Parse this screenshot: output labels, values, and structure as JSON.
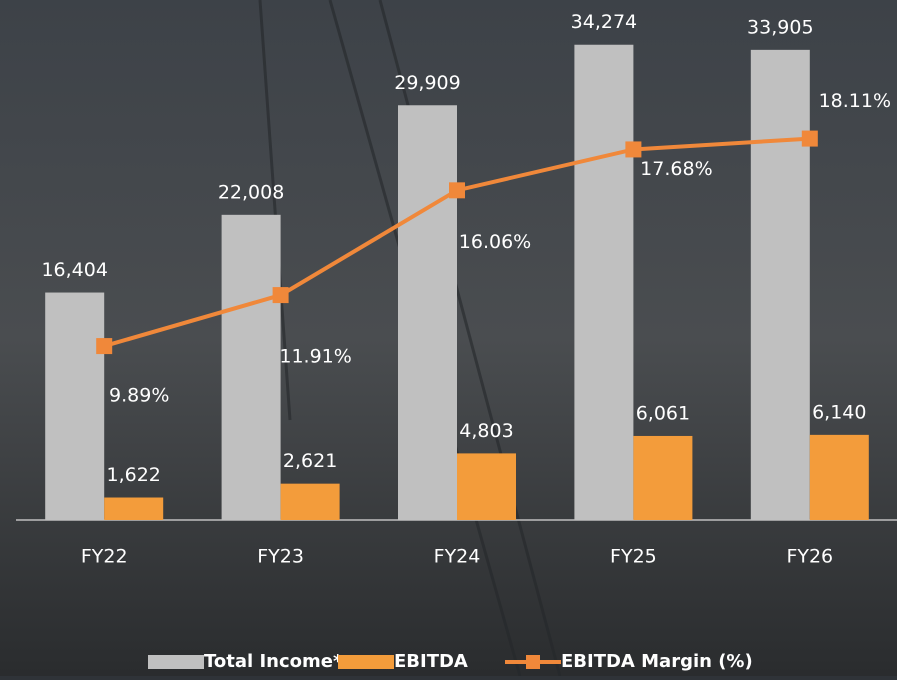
{
  "chart_data": {
    "type": "bar-line",
    "categories": [
      "FY22",
      "FY23",
      "FY24",
      "FY25",
      "FY26"
    ],
    "series": [
      {
        "name": "Total Income*",
        "type": "bar",
        "color": "#c0c0c0",
        "values": [
          16404,
          22008,
          29909,
          34274,
          33905
        ],
        "value_labels": [
          "16,404",
          "22,008",
          "29,909",
          "34,274",
          "33,905"
        ]
      },
      {
        "name": "EBITDA",
        "type": "bar",
        "color": "#f39c3b",
        "values": [
          1622,
          2621,
          4803,
          6061,
          6140
        ],
        "value_labels": [
          "1,622",
          "2,621",
          "4,803",
          "6,061",
          "6,140"
        ]
      },
      {
        "name": "EBITDA Margin (%)",
        "type": "line",
        "axis": "y2",
        "color": "#f0883a",
        "values": [
          9.89,
          11.91,
          16.06,
          17.68,
          18.11
        ],
        "value_labels": [
          "9.89%",
          "11.91%",
          "16.06%",
          "17.68%",
          "18.11%"
        ]
      }
    ],
    "ylim": [
      0,
      37500
    ],
    "y2lim": [
      3,
      23.6
    ]
  }
}
